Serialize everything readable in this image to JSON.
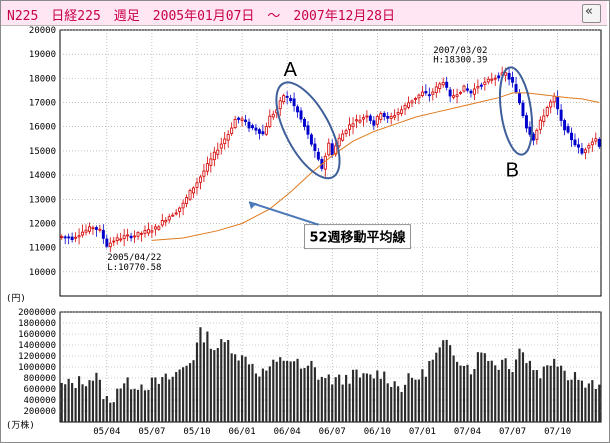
{
  "header": {
    "title": "N225　日経225　週足　2005年01月07日　～　2007年12月28日",
    "collapse_icon": "double-chevron-left-icon"
  },
  "chart_data": [
    {
      "type": "candlestick",
      "series_name": "",
      "ylim": [
        9000,
        20000
      ],
      "y_ticks": [
        "20000",
        "19000",
        "18000",
        "17000",
        "16000",
        "15000",
        "14000",
        "13000",
        "12000",
        "11000",
        "10000"
      ],
      "y_unit": "(円)",
      "x_ticks": [
        "05/04",
        "05/07",
        "05/10",
        "06/01",
        "06/04",
        "06/07",
        "06/10",
        "07/01",
        "07/04",
        "07/07",
        "07/10"
      ],
      "x_tick_weeks": [
        13,
        26,
        39,
        52,
        65,
        78,
        91,
        104,
        117,
        130,
        143
      ],
      "weeks": 156,
      "moving_average_label": "52週移動平均線",
      "annotations": {
        "low": {
          "date": "2005/04/22",
          "label": "L:10770.58"
        },
        "high": {
          "date": "2007/03/02",
          "label": "H:18300.39"
        },
        "circle_a": "A",
        "circle_b": "B"
      },
      "close_anchors": [
        [
          0,
          11450
        ],
        [
          3,
          11400
        ],
        [
          6,
          11650
        ],
        [
          9,
          11850
        ],
        [
          11,
          11700
        ],
        [
          13,
          11100
        ],
        [
          15,
          11300
        ],
        [
          18,
          11450
        ],
        [
          21,
          11500
        ],
        [
          24,
          11650
        ],
        [
          27,
          11800
        ],
        [
          30,
          12200
        ],
        [
          33,
          12500
        ],
        [
          35,
          12800
        ],
        [
          37,
          13300
        ],
        [
          39,
          13700
        ],
        [
          42,
          14400
        ],
        [
          45,
          15100
        ],
        [
          48,
          15700
        ],
        [
          50,
          16300
        ],
        [
          52,
          16300
        ],
        [
          54,
          16000
        ],
        [
          56,
          15900
        ],
        [
          58,
          15700
        ],
        [
          60,
          16400
        ],
        [
          62,
          16700
        ],
        [
          64,
          17300
        ],
        [
          66,
          17100
        ],
        [
          68,
          16600
        ],
        [
          70,
          16000
        ],
        [
          72,
          15300
        ],
        [
          74,
          14600
        ],
        [
          75,
          14300
        ],
        [
          77,
          15300
        ],
        [
          78,
          14900
        ],
        [
          80,
          15500
        ],
        [
          82,
          15900
        ],
        [
          84,
          16200
        ],
        [
          86,
          16300
        ],
        [
          88,
          16500
        ],
        [
          90,
          16100
        ],
        [
          92,
          16600
        ],
        [
          94,
          16300
        ],
        [
          96,
          16500
        ],
        [
          98,
          16700
        ],
        [
          100,
          17000
        ],
        [
          102,
          17200
        ],
        [
          104,
          17400
        ],
        [
          106,
          17300
        ],
        [
          108,
          17600
        ],
        [
          110,
          17900
        ],
        [
          112,
          17200
        ],
        [
          114,
          17400
        ],
        [
          116,
          17600
        ],
        [
          118,
          17400
        ],
        [
          120,
          17700
        ],
        [
          122,
          17800
        ],
        [
          124,
          18000
        ],
        [
          126,
          18100
        ],
        [
          128,
          18200
        ],
        [
          130,
          17800
        ],
        [
          132,
          17000
        ],
        [
          134,
          16000
        ],
        [
          136,
          15500
        ],
        [
          138,
          16200
        ],
        [
          140,
          16800
        ],
        [
          142,
          17200
        ],
        [
          144,
          16200
        ],
        [
          146,
          15700
        ],
        [
          148,
          15300
        ],
        [
          150,
          14900
        ],
        [
          152,
          15300
        ],
        [
          154,
          15500
        ],
        [
          155,
          15250
        ]
      ],
      "ma52": [
        [
          26,
          11300
        ],
        [
          35,
          11400
        ],
        [
          45,
          11700
        ],
        [
          52,
          12000
        ],
        [
          60,
          12600
        ],
        [
          66,
          13300
        ],
        [
          72,
          14100
        ],
        [
          78,
          14800
        ],
        [
          84,
          15400
        ],
        [
          90,
          15800
        ],
        [
          96,
          16100
        ],
        [
          102,
          16400
        ],
        [
          108,
          16600
        ],
        [
          114,
          16800
        ],
        [
          120,
          17000
        ],
        [
          126,
          17200
        ],
        [
          130,
          17400
        ],
        [
          134,
          17400
        ],
        [
          140,
          17300
        ],
        [
          146,
          17200
        ],
        [
          150,
          17150
        ],
        [
          155,
          17000
        ]
      ]
    },
    {
      "type": "bar",
      "series_name": "",
      "ylim": [
        0,
        2000000
      ],
      "y_ticks": [
        "2000000",
        "1800000",
        "1600000",
        "1400000",
        "1200000",
        "1000000",
        "800000",
        "600000",
        "400000",
        "200000"
      ],
      "y_unit": "(万株)",
      "volume_anchors": [
        [
          0,
          650000
        ],
        [
          6,
          750000
        ],
        [
          10,
          820000
        ],
        [
          12,
          520000
        ],
        [
          14,
          300000
        ],
        [
          16,
          650000
        ],
        [
          20,
          700000
        ],
        [
          24,
          680000
        ],
        [
          28,
          720000
        ],
        [
          32,
          820000
        ],
        [
          36,
          1050000
        ],
        [
          38,
          1200000
        ],
        [
          40,
          1600000
        ],
        [
          42,
          1550000
        ],
        [
          44,
          1350000
        ],
        [
          46,
          1400000
        ],
        [
          48,
          1450000
        ],
        [
          50,
          1300000
        ],
        [
          52,
          1150000
        ],
        [
          54,
          1150000
        ],
        [
          56,
          950000
        ],
        [
          58,
          900000
        ],
        [
          60,
          1000000
        ],
        [
          62,
          1050000
        ],
        [
          64,
          1150000
        ],
        [
          66,
          1150000
        ],
        [
          68,
          1050000
        ],
        [
          70,
          900000
        ],
        [
          72,
          1050000
        ],
        [
          74,
          850000
        ],
        [
          76,
          800000
        ],
        [
          80,
          750000
        ],
        [
          84,
          850000
        ],
        [
          88,
          800000
        ],
        [
          92,
          900000
        ],
        [
          96,
          700000
        ],
        [
          98,
          650000
        ],
        [
          100,
          760000
        ],
        [
          104,
          850000
        ],
        [
          106,
          1050000
        ],
        [
          108,
          1200000
        ],
        [
          110,
          1400000
        ],
        [
          112,
          1350000
        ],
        [
          114,
          1200000
        ],
        [
          116,
          1100000
        ],
        [
          118,
          950000
        ],
        [
          120,
          1200000
        ],
        [
          122,
          1300000
        ],
        [
          124,
          1100000
        ],
        [
          126,
          1050000
        ],
        [
          128,
          1150000
        ],
        [
          130,
          1000000
        ],
        [
          132,
          1350000
        ],
        [
          134,
          1150000
        ],
        [
          136,
          1000000
        ],
        [
          138,
          900000
        ],
        [
          140,
          1000000
        ],
        [
          142,
          1200000
        ],
        [
          144,
          1050000
        ],
        [
          146,
          850000
        ],
        [
          148,
          900000
        ],
        [
          150,
          700000
        ],
        [
          152,
          800000
        ],
        [
          154,
          650000
        ],
        [
          155,
          600000
        ]
      ]
    }
  ]
}
